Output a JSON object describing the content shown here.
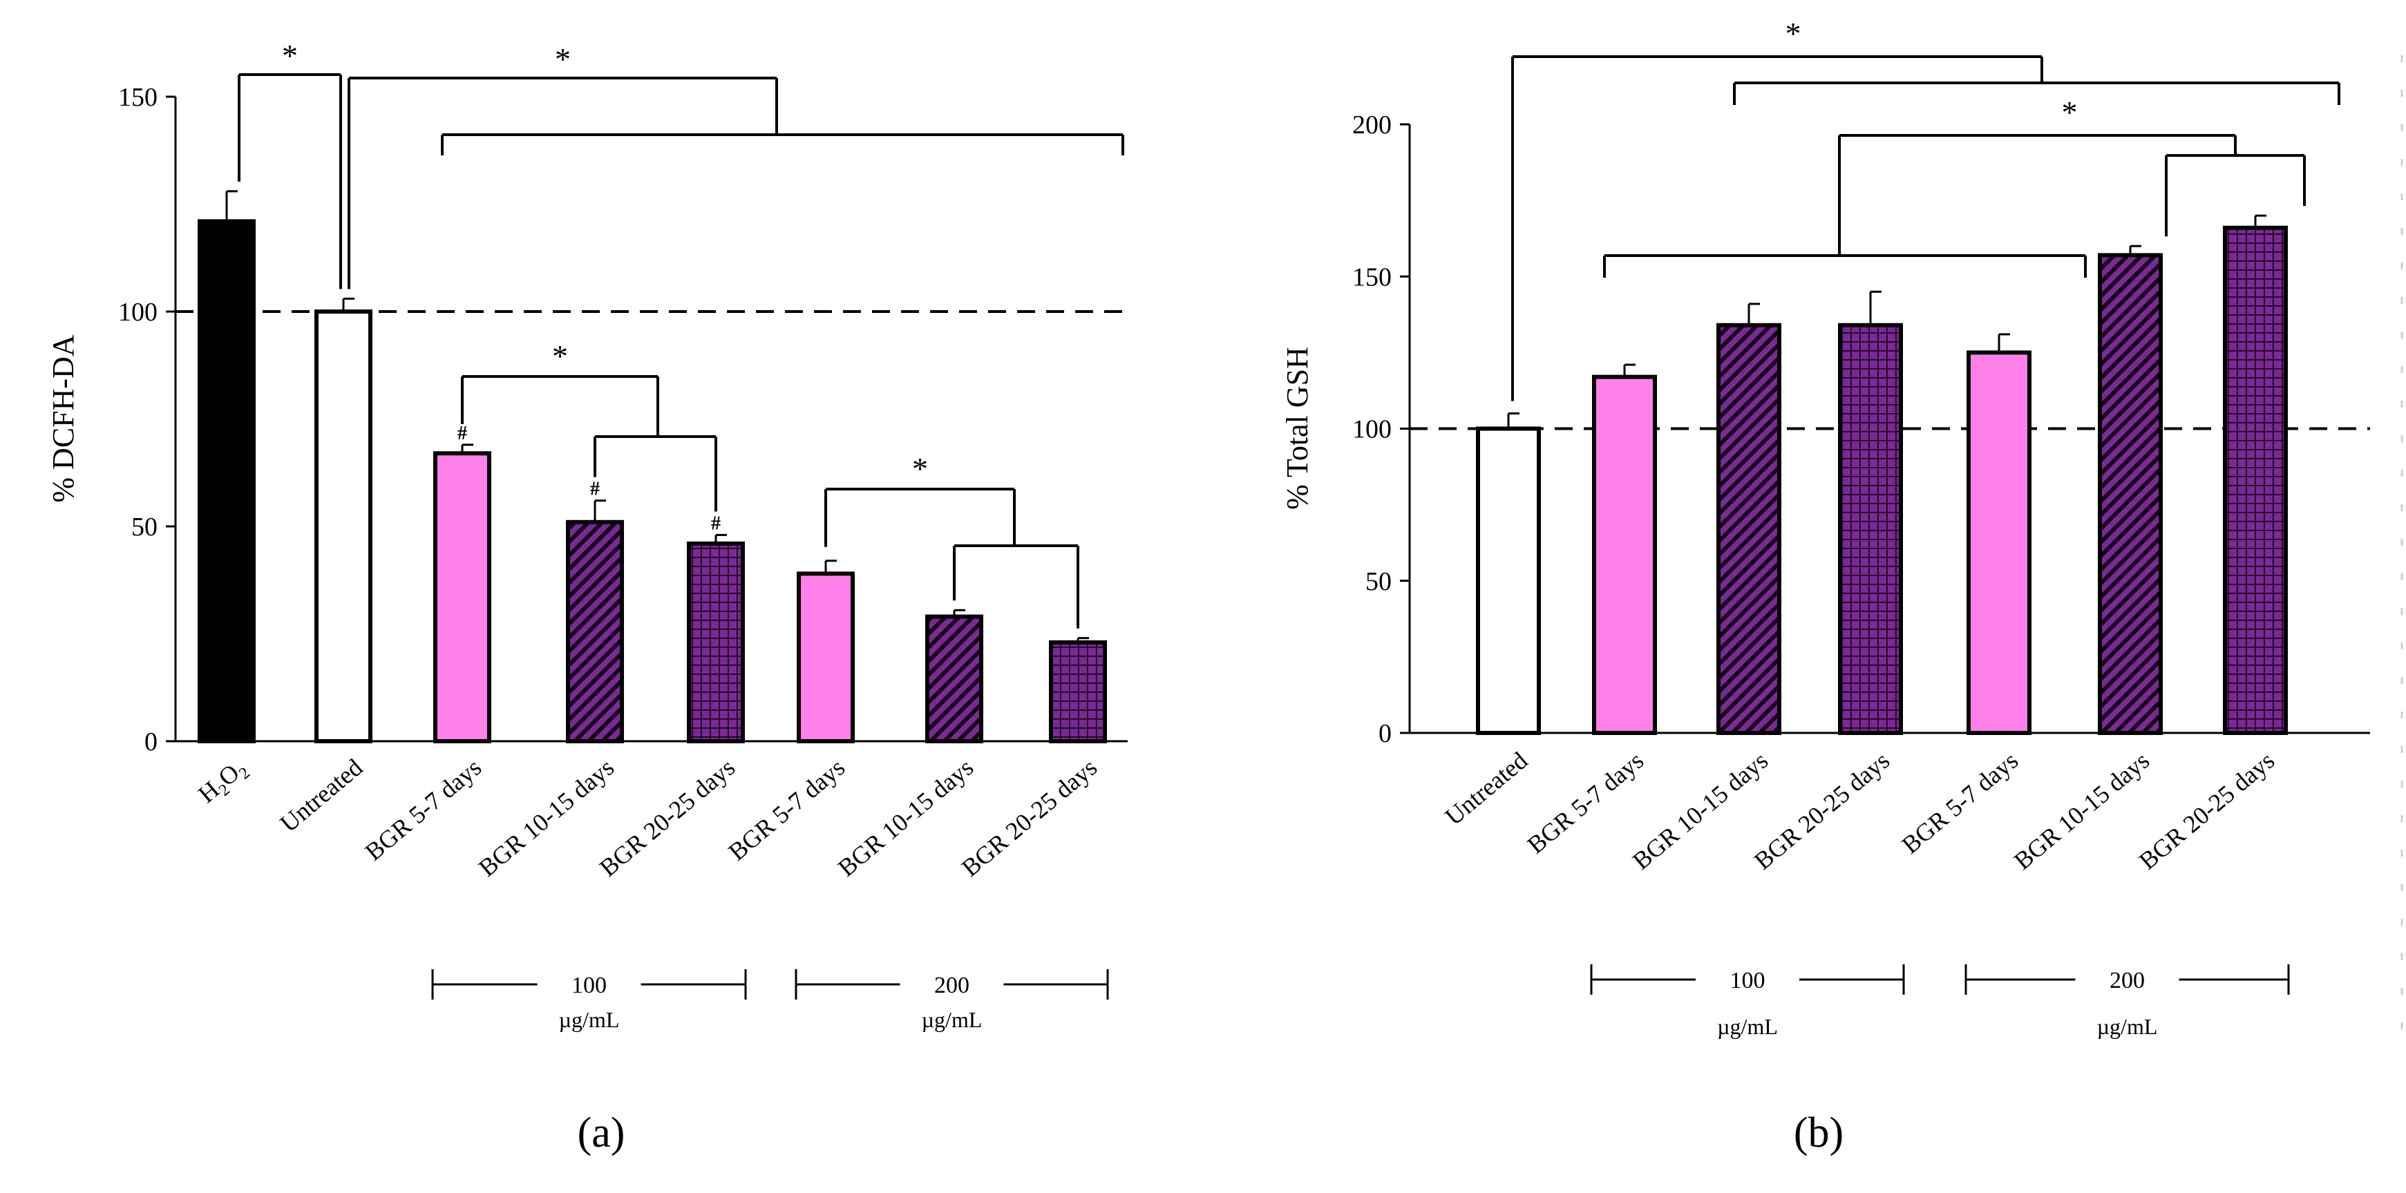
{
  "colors": {
    "black": "#000000",
    "white": "#ffffff",
    "pink": "#ff80e8",
    "purple": "#7a2a93",
    "hatch": "#1a001f"
  },
  "chart_data": [
    {
      "id": "a",
      "type": "bar",
      "panel_label": "(a)",
      "ylabel": "% DCFH-DA",
      "xlabel": "",
      "ylim": [
        0,
        150
      ],
      "yticks": [
        "0",
        "50",
        "100",
        "150"
      ],
      "ytick_values": [
        0,
        50,
        100,
        150
      ],
      "reference_line": 100,
      "categories": [
        "H₂O₂",
        "Untreated",
        "BGR 5-7 days",
        "BGR 10-15 days",
        "BGR 20-25 days",
        "BGR 5-7 days",
        "BGR 10-15 days",
        "BGR 20-25 days"
      ],
      "values": [
        121,
        100,
        67,
        51,
        46,
        39,
        29,
        23
      ],
      "errors": [
        7,
        3,
        2,
        5,
        2,
        3,
        1.5,
        1
      ],
      "fills": [
        "black",
        "white",
        "pink",
        "diag",
        "grid",
        "pink",
        "diag",
        "grid"
      ],
      "hash_marks": [
        null,
        null,
        "#",
        "#",
        "#",
        null,
        null,
        null
      ],
      "significance": [
        "*",
        "*",
        "*",
        "*"
      ],
      "dose_groups": [
        {
          "value": "100",
          "unit": "µg/mL",
          "from": 2,
          "to": 4
        },
        {
          "value": "200",
          "unit": "µg/mL",
          "from": 5,
          "to": 7
        }
      ]
    },
    {
      "id": "b",
      "type": "bar",
      "panel_label": "(b)",
      "ylabel": "% Total GSH",
      "xlabel": "",
      "ylim": [
        0,
        200
      ],
      "yticks": [
        "0",
        "50",
        "100",
        "150",
        "200"
      ],
      "ytick_values": [
        0,
        50,
        100,
        150,
        200
      ],
      "reference_line": 100,
      "categories": [
        "Untreated",
        "BGR 5-7 days",
        "BGR 10-15 days",
        "BGR 20-25 days",
        "BGR 5-7 days",
        "BGR 10-15 days",
        "BGR 20-25 days"
      ],
      "values": [
        100,
        117,
        134,
        134,
        125,
        157,
        166
      ],
      "errors": [
        5,
        4,
        7,
        11,
        6,
        3,
        4
      ],
      "fills": [
        "white",
        "pink",
        "diag",
        "grid",
        "pink",
        "diag",
        "grid"
      ],
      "significance": [
        "*",
        "*"
      ],
      "dose_groups": [
        {
          "value": "100",
          "unit": "µg/mL",
          "from": 1,
          "to": 3
        },
        {
          "value": "200",
          "unit": "µg/mL",
          "from": 4,
          "to": 6
        }
      ]
    }
  ]
}
